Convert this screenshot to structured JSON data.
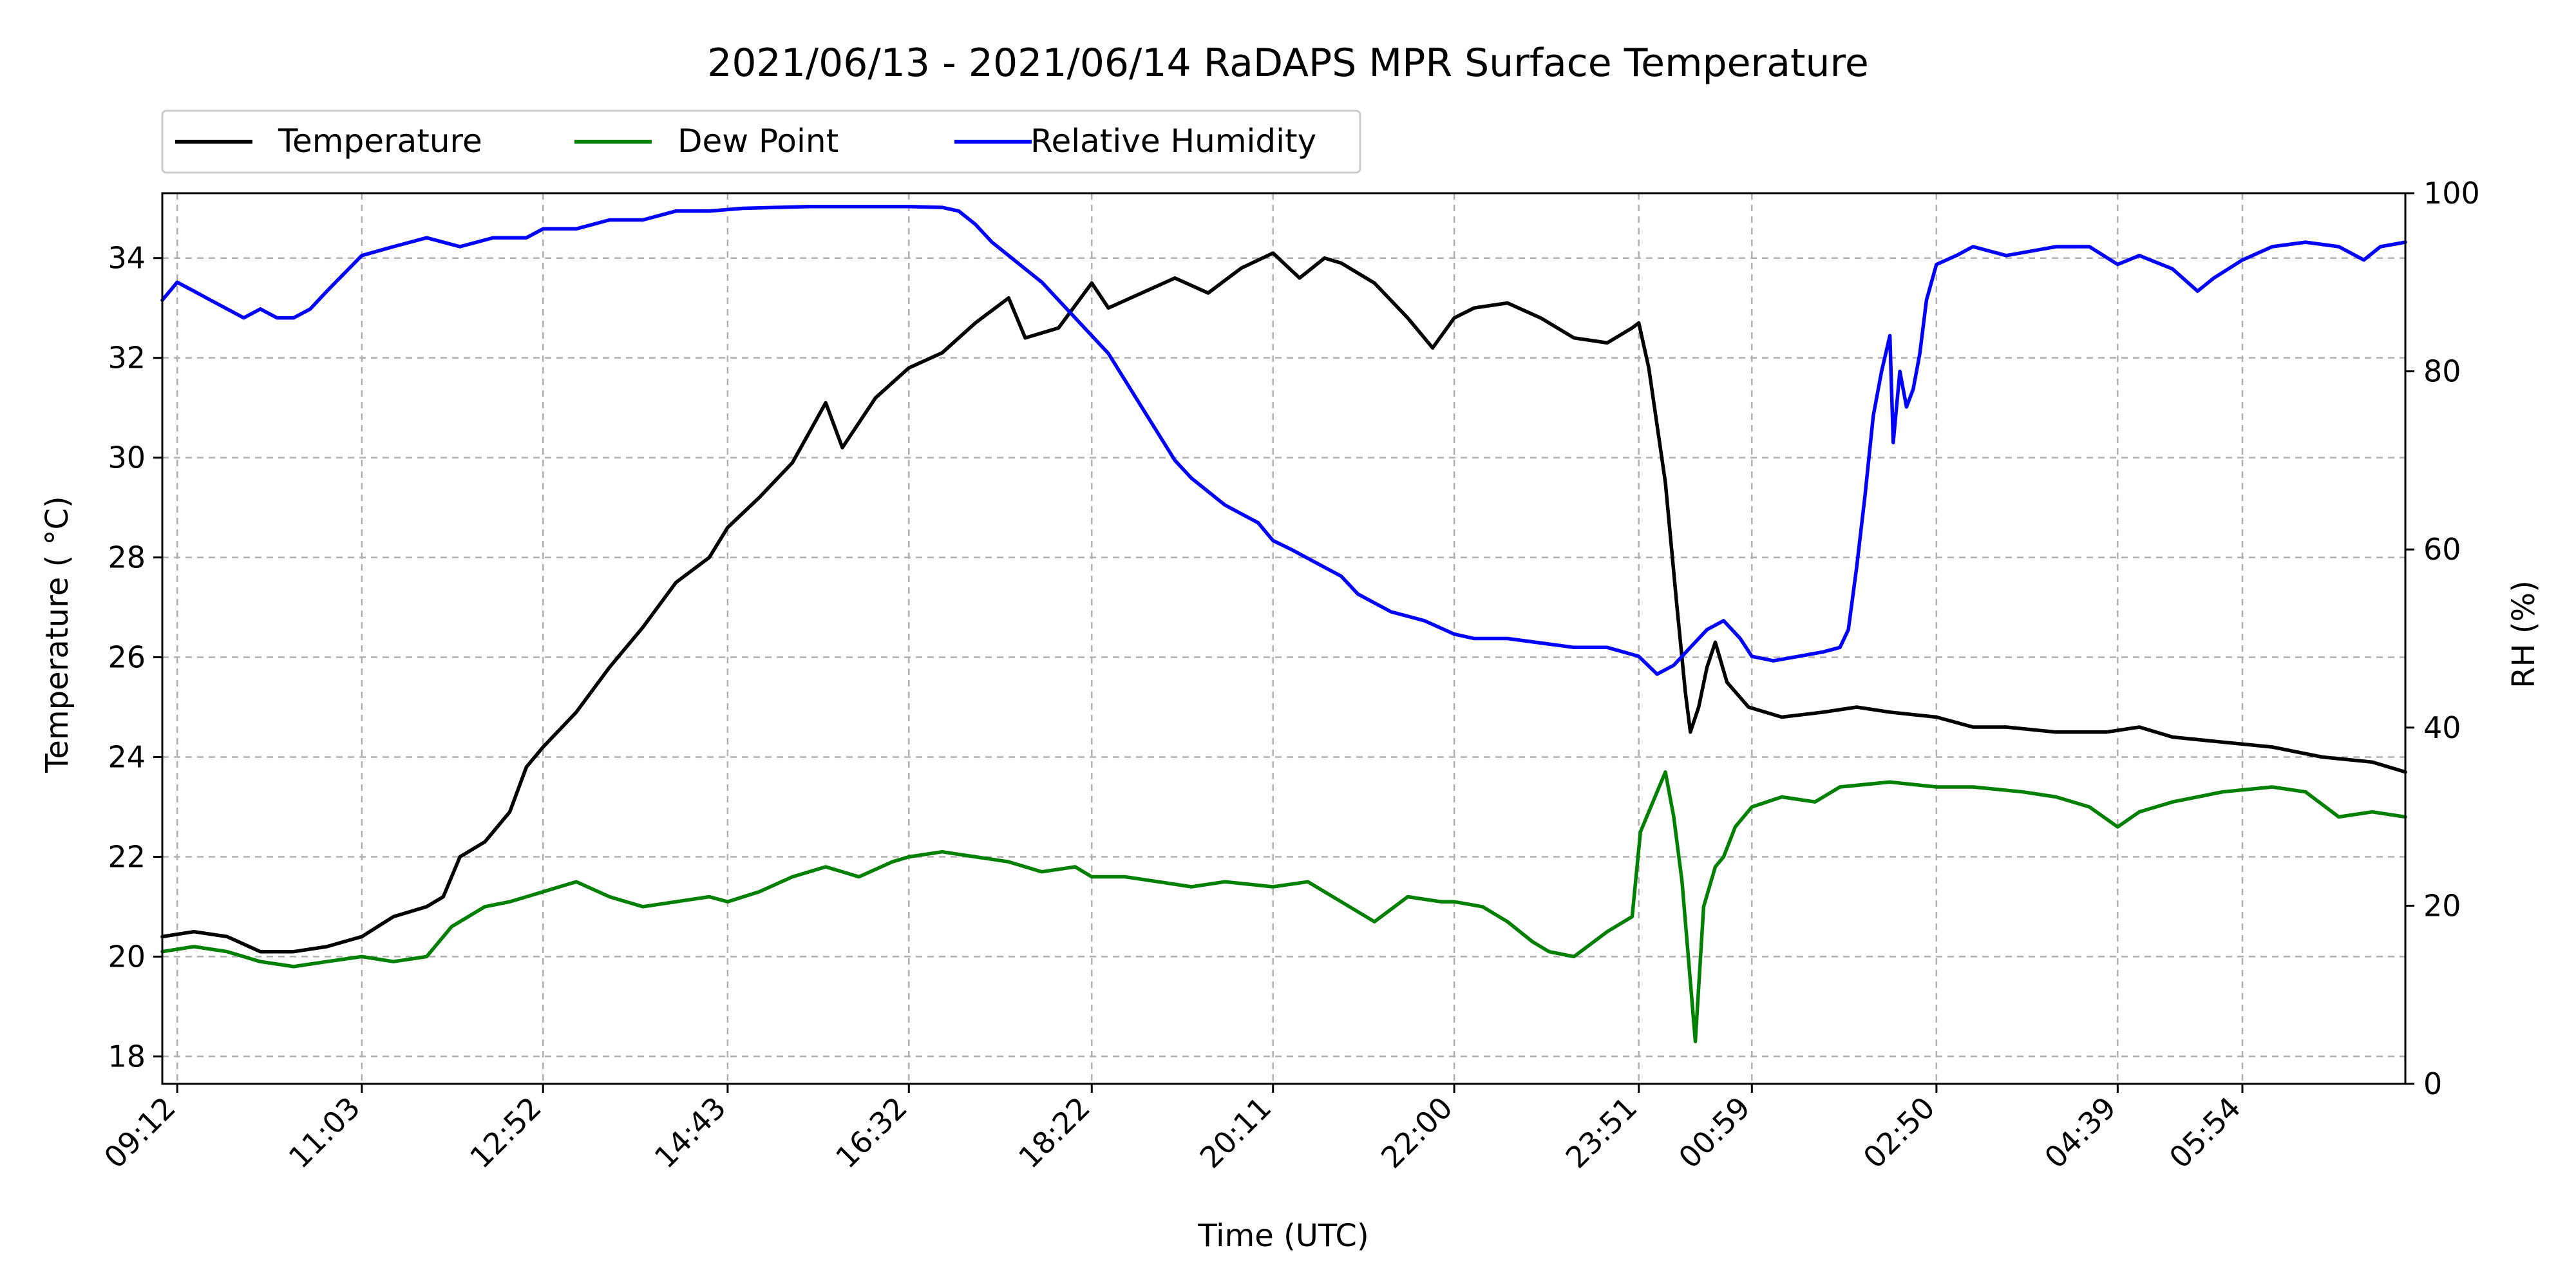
{
  "chart_data": {
    "type": "line",
    "title": "2021/06/13 - 2021/06/14 RaDAPS MPR Surface Temperature",
    "xlabel": "Time (UTC)",
    "ylabel_left": "Temperature ($^\\circ$C)",
    "ylabel_left_display": "Temperature ( °C)",
    "ylabel_right": "RH (%)",
    "x_unit": "minutes after 2021/06/13 09:12 UTC",
    "xlim": [
      -9,
      1340
    ],
    "ylim_left": [
      17.45,
      35.3
    ],
    "ylim_right": [
      0,
      100
    ],
    "grid": true,
    "legend_position": "top-left, above plot",
    "x_ticks": [
      {
        "label": "09:12",
        "value": 0
      },
      {
        "label": "11:03",
        "value": 111
      },
      {
        "label": "12:52",
        "value": 220
      },
      {
        "label": "14:43",
        "value": 331
      },
      {
        "label": "16:32",
        "value": 440
      },
      {
        "label": "18:22",
        "value": 550
      },
      {
        "label": "20:11",
        "value": 659
      },
      {
        "label": "22:00",
        "value": 768
      },
      {
        "label": "23:51",
        "value": 879
      },
      {
        "label": "00:59",
        "value": 947
      },
      {
        "label": "02:50",
        "value": 1058
      },
      {
        "label": "04:39",
        "value": 1167
      },
      {
        "label": "05:54",
        "value": 1242
      }
    ],
    "y_ticks_left": [
      18,
      20,
      22,
      24,
      26,
      28,
      30,
      32,
      34
    ],
    "y_ticks_right": [
      0,
      20,
      40,
      60,
      80,
      100
    ],
    "series": [
      {
        "name": "Temperature",
        "axis": "left",
        "color": "#000000",
        "points": [
          [
            -9,
            20.4
          ],
          [
            10,
            20.5
          ],
          [
            30,
            20.4
          ],
          [
            50,
            20.1
          ],
          [
            70,
            20.1
          ],
          [
            90,
            20.2
          ],
          [
            111,
            20.4
          ],
          [
            130,
            20.8
          ],
          [
            150,
            21.0
          ],
          [
            160,
            21.2
          ],
          [
            170,
            22.0
          ],
          [
            185,
            22.3
          ],
          [
            200,
            22.9
          ],
          [
            210,
            23.8
          ],
          [
            220,
            24.2
          ],
          [
            240,
            24.9
          ],
          [
            260,
            25.8
          ],
          [
            280,
            26.6
          ],
          [
            300,
            27.5
          ],
          [
            320,
            28.0
          ],
          [
            331,
            28.6
          ],
          [
            350,
            29.2
          ],
          [
            370,
            29.9
          ],
          [
            380,
            30.5
          ],
          [
            390,
            31.1
          ],
          [
            400,
            30.2
          ],
          [
            420,
            31.2
          ],
          [
            440,
            31.8
          ],
          [
            460,
            32.1
          ],
          [
            480,
            32.7
          ],
          [
            500,
            33.2
          ],
          [
            510,
            32.4
          ],
          [
            530,
            32.6
          ],
          [
            550,
            33.5
          ],
          [
            560,
            33.0
          ],
          [
            580,
            33.3
          ],
          [
            600,
            33.6
          ],
          [
            620,
            33.3
          ],
          [
            640,
            33.8
          ],
          [
            659,
            34.1
          ],
          [
            675,
            33.6
          ],
          [
            690,
            34.0
          ],
          [
            700,
            33.9
          ],
          [
            720,
            33.5
          ],
          [
            740,
            32.8
          ],
          [
            755,
            32.2
          ],
          [
            768,
            32.8
          ],
          [
            780,
            33.0
          ],
          [
            800,
            33.1
          ],
          [
            820,
            32.8
          ],
          [
            840,
            32.4
          ],
          [
            860,
            32.3
          ],
          [
            875,
            32.6
          ],
          [
            879,
            32.7
          ],
          [
            885,
            31.8
          ],
          [
            895,
            29.5
          ],
          [
            902,
            27.0
          ],
          [
            907,
            25.3
          ],
          [
            910,
            24.5
          ],
          [
            915,
            25.0
          ],
          [
            920,
            25.8
          ],
          [
            925,
            26.3
          ],
          [
            932,
            25.5
          ],
          [
            945,
            25.0
          ],
          [
            965,
            24.8
          ],
          [
            990,
            24.9
          ],
          [
            1010,
            25.0
          ],
          [
            1030,
            24.9
          ],
          [
            1058,
            24.8
          ],
          [
            1080,
            24.6
          ],
          [
            1100,
            24.6
          ],
          [
            1130,
            24.5
          ],
          [
            1160,
            24.5
          ],
          [
            1180,
            24.6
          ],
          [
            1200,
            24.4
          ],
          [
            1230,
            24.3
          ],
          [
            1260,
            24.2
          ],
          [
            1290,
            24.0
          ],
          [
            1320,
            23.9
          ],
          [
            1340,
            23.7
          ]
        ]
      },
      {
        "name": "Dew Point",
        "axis": "left",
        "color": "#008000",
        "points": [
          [
            -9,
            20.1
          ],
          [
            10,
            20.2
          ],
          [
            30,
            20.1
          ],
          [
            50,
            19.9
          ],
          [
            70,
            19.8
          ],
          [
            90,
            19.9
          ],
          [
            111,
            20.0
          ],
          [
            130,
            19.9
          ],
          [
            150,
            20.0
          ],
          [
            165,
            20.6
          ],
          [
            185,
            21.0
          ],
          [
            200,
            21.1
          ],
          [
            220,
            21.3
          ],
          [
            240,
            21.5
          ],
          [
            260,
            21.2
          ],
          [
            280,
            21.0
          ],
          [
            300,
            21.1
          ],
          [
            320,
            21.2
          ],
          [
            331,
            21.1
          ],
          [
            350,
            21.3
          ],
          [
            370,
            21.6
          ],
          [
            390,
            21.8
          ],
          [
            410,
            21.6
          ],
          [
            430,
            21.9
          ],
          [
            440,
            22.0
          ],
          [
            460,
            22.1
          ],
          [
            480,
            22.0
          ],
          [
            500,
            21.9
          ],
          [
            520,
            21.7
          ],
          [
            540,
            21.8
          ],
          [
            550,
            21.6
          ],
          [
            570,
            21.6
          ],
          [
            590,
            21.5
          ],
          [
            610,
            21.4
          ],
          [
            630,
            21.5
          ],
          [
            659,
            21.4
          ],
          [
            680,
            21.5
          ],
          [
            700,
            21.1
          ],
          [
            720,
            20.7
          ],
          [
            740,
            21.2
          ],
          [
            760,
            21.1
          ],
          [
            768,
            21.1
          ],
          [
            785,
            21.0
          ],
          [
            800,
            20.7
          ],
          [
            815,
            20.3
          ],
          [
            825,
            20.1
          ],
          [
            840,
            20.0
          ],
          [
            860,
            20.5
          ],
          [
            875,
            20.8
          ],
          [
            880,
            22.5
          ],
          [
            890,
            23.3
          ],
          [
            895,
            23.7
          ],
          [
            900,
            22.8
          ],
          [
            905,
            21.5
          ],
          [
            910,
            19.5
          ],
          [
            913,
            18.3
          ],
          [
            918,
            21.0
          ],
          [
            925,
            21.8
          ],
          [
            930,
            22.0
          ],
          [
            937,
            22.6
          ],
          [
            947,
            23.0
          ],
          [
            965,
            23.2
          ],
          [
            985,
            23.1
          ],
          [
            1000,
            23.4
          ],
          [
            1030,
            23.5
          ],
          [
            1058,
            23.4
          ],
          [
            1080,
            23.4
          ],
          [
            1110,
            23.3
          ],
          [
            1130,
            23.2
          ],
          [
            1150,
            23.0
          ],
          [
            1167,
            22.6
          ],
          [
            1180,
            22.9
          ],
          [
            1200,
            23.1
          ],
          [
            1230,
            23.3
          ],
          [
            1260,
            23.4
          ],
          [
            1280,
            23.3
          ],
          [
            1300,
            22.8
          ],
          [
            1320,
            22.9
          ],
          [
            1340,
            22.8
          ]
        ]
      },
      {
        "name": "Relative Humidity",
        "axis": "right",
        "color": "#0000ff",
        "points": [
          [
            -9,
            88
          ],
          [
            0,
            90
          ],
          [
            10,
            89
          ],
          [
            20,
            88
          ],
          [
            30,
            87
          ],
          [
            40,
            86
          ],
          [
            50,
            87
          ],
          [
            60,
            86
          ],
          [
            70,
            86
          ],
          [
            80,
            87
          ],
          [
            90,
            89
          ],
          [
            111,
            93
          ],
          [
            130,
            94
          ],
          [
            150,
            95
          ],
          [
            170,
            94
          ],
          [
            190,
            95
          ],
          [
            210,
            95
          ],
          [
            220,
            96
          ],
          [
            240,
            96
          ],
          [
            260,
            97
          ],
          [
            280,
            97
          ],
          [
            300,
            98
          ],
          [
            320,
            98
          ],
          [
            340,
            98.3
          ],
          [
            360,
            98.4
          ],
          [
            380,
            98.5
          ],
          [
            400,
            98.5
          ],
          [
            420,
            98.5
          ],
          [
            440,
            98.5
          ],
          [
            460,
            98.4
          ],
          [
            470,
            98.0
          ],
          [
            480,
            96.5
          ],
          [
            490,
            94.5
          ],
          [
            500,
            93.0
          ],
          [
            510,
            91.5
          ],
          [
            520,
            90.0
          ],
          [
            530,
            88.0
          ],
          [
            540,
            86.0
          ],
          [
            550,
            84.0
          ],
          [
            560,
            82.0
          ],
          [
            570,
            79.0
          ],
          [
            580,
            76.0
          ],
          [
            590,
            73.0
          ],
          [
            600,
            70.0
          ],
          [
            610,
            68.0
          ],
          [
            620,
            66.5
          ],
          [
            630,
            65.0
          ],
          [
            640,
            64.0
          ],
          [
            650,
            63.0
          ],
          [
            659,
            61.0
          ],
          [
            670,
            60.0
          ],
          [
            680,
            59.0
          ],
          [
            690,
            58.0
          ],
          [
            700,
            57.0
          ],
          [
            710,
            55.0
          ],
          [
            720,
            54.0
          ],
          [
            730,
            53.0
          ],
          [
            740,
            52.5
          ],
          [
            750,
            52.0
          ],
          [
            768,
            50.5
          ],
          [
            780,
            50.0
          ],
          [
            800,
            50.0
          ],
          [
            820,
            49.5
          ],
          [
            840,
            49.0
          ],
          [
            860,
            49.0
          ],
          [
            879,
            48.0
          ],
          [
            890,
            46.0
          ],
          [
            900,
            47.0
          ],
          [
            910,
            49.0
          ],
          [
            920,
            51.0
          ],
          [
            930,
            52.0
          ],
          [
            940,
            50.0
          ],
          [
            947,
            48.0
          ],
          [
            960,
            47.5
          ],
          [
            975,
            48.0
          ],
          [
            990,
            48.5
          ],
          [
            1000,
            49.0
          ],
          [
            1005,
            51.0
          ],
          [
            1010,
            58.0
          ],
          [
            1015,
            66.0
          ],
          [
            1020,
            75.0
          ],
          [
            1025,
            80.0
          ],
          [
            1030,
            84.0
          ],
          [
            1032,
            72.0
          ],
          [
            1036,
            80.0
          ],
          [
            1040,
            76.0
          ],
          [
            1044,
            78.0
          ],
          [
            1048,
            82.0
          ],
          [
            1052,
            88.0
          ],
          [
            1058,
            92.0
          ],
          [
            1070,
            93.0
          ],
          [
            1080,
            94.0
          ],
          [
            1100,
            93.0
          ],
          [
            1130,
            94.0
          ],
          [
            1150,
            94.0
          ],
          [
            1167,
            92.0
          ],
          [
            1180,
            93.0
          ],
          [
            1200,
            91.5
          ],
          [
            1215,
            89.0
          ],
          [
            1225,
            90.5
          ],
          [
            1242,
            92.5
          ],
          [
            1260,
            94.0
          ],
          [
            1280,
            94.5
          ],
          [
            1300,
            94.0
          ],
          [
            1315,
            92.5
          ],
          [
            1325,
            94.0
          ],
          [
            1340,
            94.5
          ]
        ]
      }
    ]
  }
}
